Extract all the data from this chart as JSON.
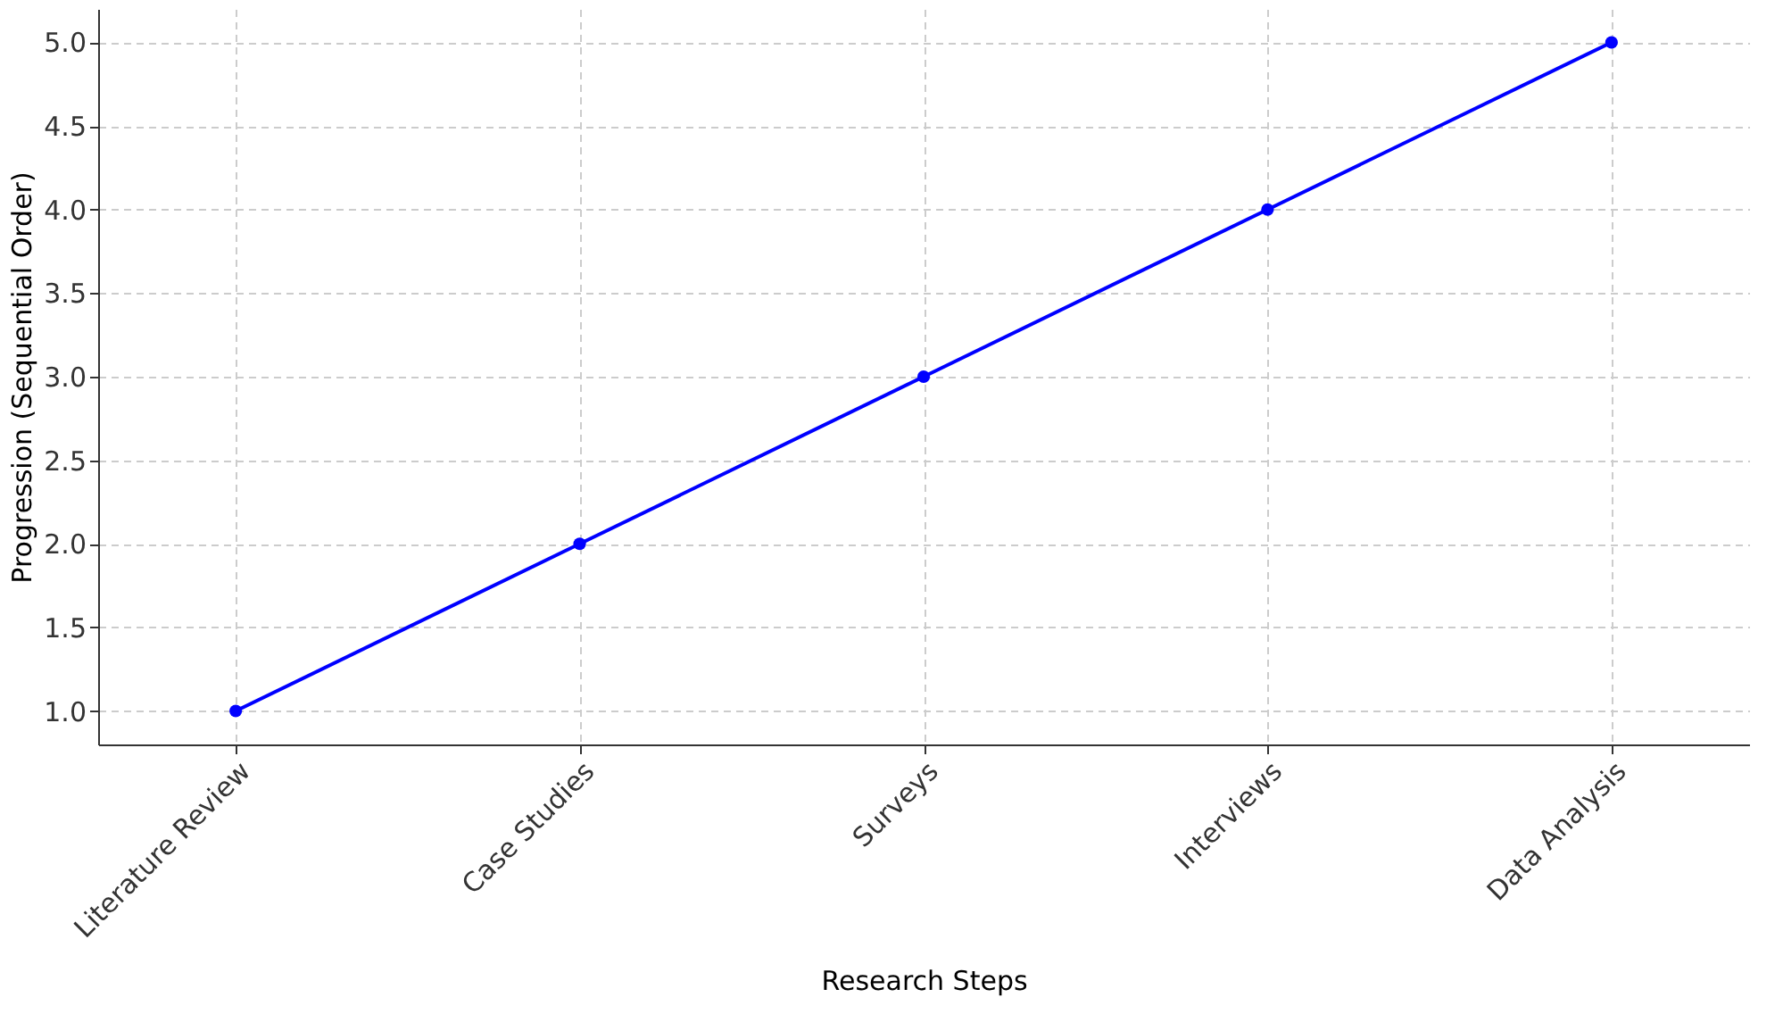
{
  "chart_data": {
    "type": "line",
    "xlabel": "Research Steps",
    "ylabel": "Progression (Sequential Order)",
    "categories": [
      "Literature Review",
      "Case Studies",
      "Surveys",
      "Interviews",
      "Data Analysis"
    ],
    "values": [
      1,
      2,
      3,
      4,
      5
    ],
    "color": "#0000ff",
    "ylim": [
      0.8,
      5.2
    ],
    "yticks": [
      {
        "value": 1,
        "label": "1.0"
      },
      1.5,
      {
        "value": 2,
        "label": "2.0"
      },
      2.5,
      {
        "value": 3,
        "label": "3.0"
      },
      3.5,
      {
        "value": 4,
        "label": "4.0"
      },
      4.5,
      {
        "value": 5,
        "label": "5.0"
      }
    ],
    "grid": true,
    "marker": "circle",
    "line_style": "solid"
  }
}
